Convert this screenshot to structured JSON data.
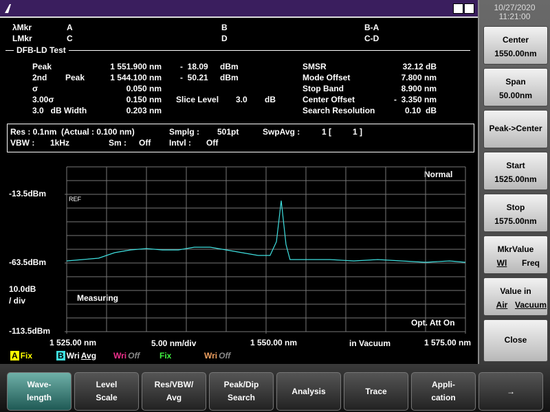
{
  "clock": {
    "date": "10/27/2020",
    "time": "11:21:00"
  },
  "markers": [
    [
      "λMkr",
      "A",
      "B",
      "B-A"
    ],
    [
      "LMkr",
      "C",
      "D",
      "C-D"
    ]
  ],
  "test_name": "DFB-LD Test",
  "results_left": [
    {
      "label": "Peak",
      "wavelength": "1 551.900 nm",
      "level": "-  18.09",
      "unit": "dBm"
    },
    {
      "label": "2nd",
      "sub": "Peak",
      "wavelength": "1 544.100 nm",
      "level": "-  50.21",
      "unit": "dBm"
    },
    {
      "label": "σ",
      "wavelength": "0.050 nm"
    },
    {
      "label": "3.00σ",
      "wavelength": "0.150 nm",
      "slice": "Slice Level",
      "slice_value": "3.0",
      "slice_unit": "dB"
    },
    {
      "label": "3.0   dB Width",
      "wavelength": "0.203 nm"
    }
  ],
  "results_right": [
    [
      "SMSR",
      "32.12 dB"
    ],
    [
      "Mode Offset",
      "7.800 nm"
    ],
    [
      "Stop Band",
      "8.900 nm"
    ],
    [
      "Center Offset",
      "-  3.350 nm"
    ],
    [
      "Search Resolution",
      "0.10  dB"
    ]
  ],
  "settings": [
    [
      "Res : 0.1nm  (Actual : 0.100 nm)",
      "Smplg :",
      "501pt",
      "SwpAvg :",
      "1 [",
      "1 ]"
    ],
    [
      "VBW :",
      "1kHz",
      "Sm :",
      "Off",
      "Intvl :",
      "Off"
    ]
  ],
  "graph": {
    "mode": "Normal",
    "ref": "REF",
    "status": "Measuring",
    "att": "Opt. Att On",
    "scale": "10.0dB",
    "scale_unit": "/ div",
    "x_div": "5.00 nm/div",
    "medium": "in Vacuum"
  },
  "traces": [
    [
      "A",
      "Fix"
    ],
    [
      "B",
      "Wri",
      "Avg"
    ],
    [
      "Wri",
      "Off"
    ],
    [
      "Fix"
    ],
    [
      "Wri",
      "Off"
    ]
  ],
  "softkeys": [
    [
      "Center",
      "1550.00nm"
    ],
    [
      "Span",
      "50.00nm"
    ],
    [
      "Peak->Center"
    ],
    [
      "Start",
      "1525.00nm"
    ],
    [
      "Stop",
      "1575.00nm"
    ],
    [
      "MkrValue",
      "Wl",
      "Freq"
    ],
    [
      "Value in",
      "Air",
      "Vacuum"
    ],
    [
      "Close"
    ]
  ],
  "function_keys": [
    [
      "Wave-",
      "length"
    ],
    [
      "Level",
      "Scale"
    ],
    [
      "Res/VBW/",
      "Avg"
    ],
    [
      "Peak/Dip",
      "Search"
    ],
    [
      "Analysis"
    ],
    [
      "Trace"
    ],
    [
      "Appli-",
      "cation"
    ],
    [
      "→"
    ]
  ],
  "chart_data": {
    "type": "line",
    "x": [
      1525,
      1527,
      1529,
      1531,
      1533,
      1535,
      1537,
      1539,
      1541,
      1543,
      1545,
      1547,
      1549,
      1550.5,
      1551.3,
      1551.9,
      1552.5,
      1553,
      1555,
      1558,
      1561,
      1564,
      1567,
      1570,
      1573,
      1575
    ],
    "series": [
      {
        "color": "#3fe0e0",
        "values": [
          -62,
          -61,
          -60,
          -56,
          -54,
          -53,
          -54,
          -54,
          -52,
          -52,
          -54,
          -56,
          -58,
          -58,
          -48,
          -18.09,
          -50,
          -61,
          -61,
          -61,
          -62,
          -61,
          -62,
          -63,
          -62,
          -63
        ]
      }
    ],
    "xlim": [
      1525,
      1575
    ],
    "xticks": [
      {
        "value": 1525,
        "label": "1 525.00 nm"
      },
      {
        "value": 1550,
        "label": "1 550.00 nm"
      },
      {
        "value": 1575,
        "label": "1 575.00 nm"
      }
    ],
    "ylim": [
      -113.5,
      6.5
    ],
    "yticks": [
      {
        "value": -13.5,
        "label": "-13.5dBm"
      },
      {
        "value": -63.5,
        "label": "-63.5dBm"
      },
      {
        "value": -113.5,
        "label": "-113.5dBm"
      }
    ]
  }
}
